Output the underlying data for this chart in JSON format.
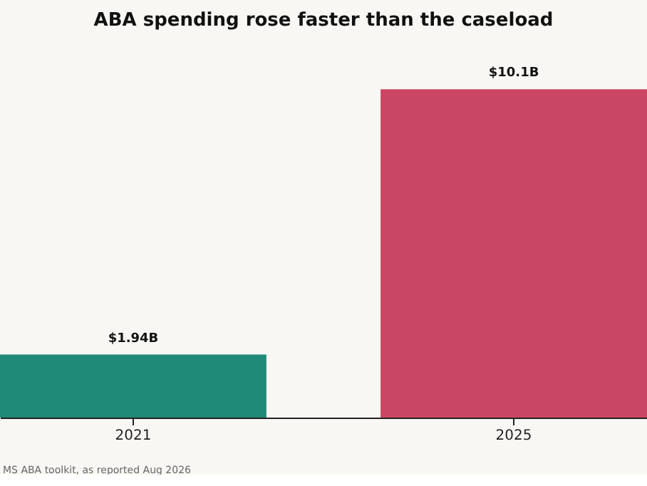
{
  "chart_data": {
    "type": "bar",
    "title": "ABA spending rose faster than the caseload",
    "categories": [
      "2021",
      "2025"
    ],
    "values": [
      1.94,
      10.1
    ],
    "value_labels": [
      "$1.94B",
      "$10.1B"
    ],
    "colors": [
      "#1f8a78",
      "#c94762"
    ],
    "grid": false,
    "annotations": [
      "MS ABA toolkit, as reported Aug 2026"
    ]
  }
}
